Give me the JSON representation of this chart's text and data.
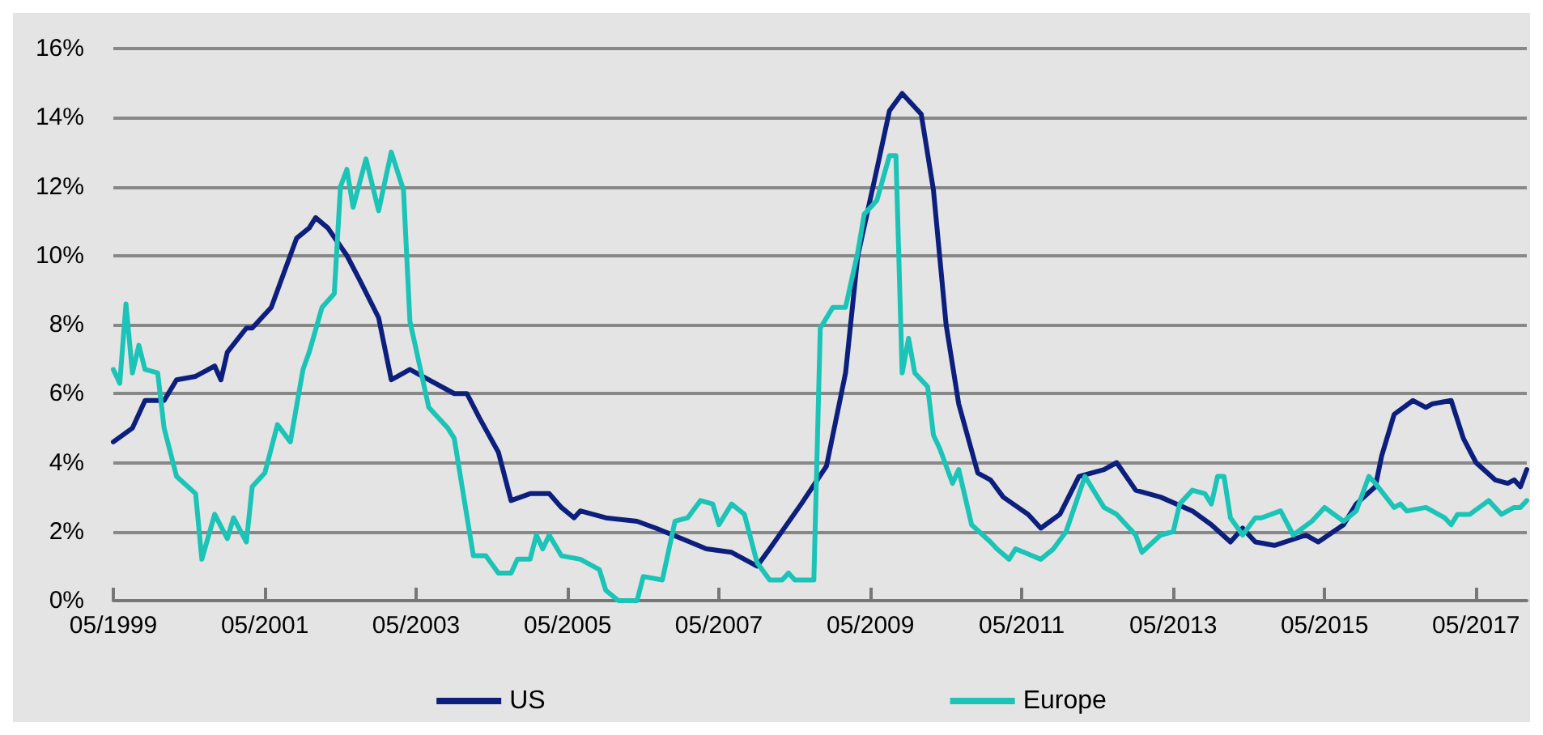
{
  "chart_data": {
    "type": "line",
    "xlim": [
      "1999-05",
      "2018-01"
    ],
    "xticks": [
      {
        "value": "1999-05",
        "label": "05/1999"
      },
      {
        "value": "2001-05",
        "label": "05/2001"
      },
      {
        "value": "2003-05",
        "label": "05/2003"
      },
      {
        "value": "2005-05",
        "label": "05/2005"
      },
      {
        "value": "2007-05",
        "label": "05/2007"
      },
      {
        "value": "2009-05",
        "label": "05/2009"
      },
      {
        "value": "2011-05",
        "label": "05/2011"
      },
      {
        "value": "2013-05",
        "label": "05/2013"
      },
      {
        "value": "2015-05",
        "label": "05/2015"
      },
      {
        "value": "2017-05",
        "label": "05/2017"
      }
    ],
    "ylim": [
      0,
      16
    ],
    "yticks": [
      {
        "value": 0,
        "label": "0%"
      },
      {
        "value": 2,
        "label": "2%"
      },
      {
        "value": 4,
        "label": "4%"
      },
      {
        "value": 6,
        "label": "6%"
      },
      {
        "value": 8,
        "label": "8%"
      },
      {
        "value": 10,
        "label": "10%"
      },
      {
        "value": 12,
        "label": "12%"
      },
      {
        "value": 14,
        "label": "14%"
      },
      {
        "value": 16,
        "label": "16%"
      }
    ],
    "grid": "y",
    "legend": "bottom",
    "marker": "none",
    "line_style": "solid",
    "series": [
      {
        "name": "US",
        "color": "#0d1f7c",
        "x": [
          "1999-05",
          "1999-08",
          "1999-10",
          "2000-01",
          "2000-03",
          "2000-06",
          "2000-09",
          "2000-10",
          "2000-11",
          "2001-02",
          "2001-03",
          "2001-06",
          "2001-08",
          "2001-10",
          "2001-12",
          "2002-01",
          "2002-03",
          "2002-06",
          "2002-08",
          "2002-11",
          "2003-01",
          "2003-02",
          "2003-04",
          "2003-07",
          "2003-11",
          "2004-01",
          "2004-03",
          "2004-06",
          "2004-08",
          "2004-11",
          "2005-02",
          "2005-04",
          "2005-06",
          "2005-07",
          "2005-11",
          "2006-04",
          "2006-07",
          "2006-11",
          "2007-03",
          "2007-07",
          "2007-11",
          "2008-01",
          "2008-06",
          "2008-10",
          "2009-01",
          "2009-03",
          "2009-06",
          "2009-08",
          "2009-10",
          "2010-01",
          "2010-03",
          "2010-05",
          "2010-07",
          "2010-10",
          "2010-12",
          "2011-02",
          "2011-06",
          "2011-08",
          "2011-11",
          "2012-02",
          "2012-06",
          "2012-08",
          "2012-11",
          "2013-03",
          "2013-08",
          "2013-11",
          "2014-02",
          "2014-04",
          "2014-06",
          "2014-09",
          "2015-02",
          "2015-04",
          "2015-08",
          "2015-10",
          "2016-01",
          "2016-02",
          "2016-04",
          "2016-07",
          "2016-09",
          "2016-10",
          "2017-01",
          "2017-03",
          "2017-05",
          "2017-08",
          "2017-10",
          "2017-11",
          "2017-12",
          "2018-01"
        ],
        "values": [
          4.6,
          5.0,
          5.8,
          5.8,
          6.4,
          6.5,
          6.8,
          6.4,
          7.2,
          7.9,
          7.9,
          8.5,
          9.5,
          10.5,
          10.8,
          11.1,
          10.8,
          10.0,
          9.3,
          8.2,
          6.4,
          6.5,
          6.7,
          6.4,
          6.0,
          6.0,
          5.3,
          4.3,
          2.9,
          3.1,
          3.1,
          2.7,
          2.4,
          2.6,
          2.4,
          2.3,
          2.1,
          1.8,
          1.5,
          1.4,
          1.0,
          1.5,
          2.8,
          3.9,
          6.6,
          10.0,
          12.5,
          14.2,
          14.7,
          14.1,
          11.9,
          8.0,
          5.7,
          3.7,
          3.5,
          3.0,
          2.5,
          2.1,
          2.5,
          3.6,
          3.8,
          4.0,
          3.2,
          3.0,
          2.6,
          2.2,
          1.7,
          2.1,
          1.7,
          1.6,
          1.9,
          1.7,
          2.2,
          2.8,
          3.3,
          4.2,
          5.4,
          5.8,
          5.6,
          5.7,
          5.8,
          4.7,
          4.0,
          3.5,
          3.4,
          3.5,
          3.3,
          3.8
        ]
      },
      {
        "name": "Europe",
        "color": "#1bc4b6",
        "x": [
          "1999-05",
          "1999-06",
          "1999-07",
          "1999-08",
          "1999-09",
          "1999-10",
          "1999-12",
          "2000-01",
          "2000-03",
          "2000-06",
          "2000-07",
          "2000-09",
          "2000-11",
          "2000-12",
          "2001-02",
          "2001-03",
          "2001-05",
          "2001-07",
          "2001-09",
          "2001-11",
          "2001-12",
          "2002-02",
          "2002-04",
          "2002-05",
          "2002-06",
          "2002-07",
          "2002-09",
          "2002-11",
          "2003-01",
          "2003-03",
          "2003-04",
          "2003-07",
          "2003-10",
          "2003-11",
          "2004-02",
          "2004-04",
          "2004-06",
          "2004-08",
          "2004-09",
          "2004-11",
          "2004-12",
          "2005-01",
          "2005-02",
          "2005-04",
          "2005-07",
          "2005-10",
          "2005-11",
          "2006-01",
          "2006-04",
          "2006-05",
          "2006-08",
          "2006-10",
          "2006-12",
          "2007-02",
          "2007-04",
          "2007-05",
          "2007-07",
          "2007-09",
          "2007-11",
          "2008-01",
          "2008-03",
          "2008-04",
          "2008-05",
          "2008-08",
          "2008-09",
          "2008-11",
          "2009-01",
          "2009-03",
          "2009-04",
          "2009-06",
          "2009-08",
          "2009-09",
          "2009-10",
          "2009-11",
          "2009-12",
          "2010-02",
          "2010-03",
          "2010-04",
          "2010-06",
          "2010-07",
          "2010-09",
          "2010-12",
          "2011-01",
          "2011-03",
          "2011-04",
          "2011-08",
          "2011-10",
          "2011-12",
          "2012-03",
          "2012-06",
          "2012-08",
          "2012-11",
          "2012-12",
          "2013-03",
          "2013-05",
          "2013-06",
          "2013-08",
          "2013-10",
          "2013-11",
          "2013-12",
          "2014-01",
          "2014-02",
          "2014-04",
          "2014-06",
          "2014-07",
          "2014-10",
          "2014-12",
          "2015-03",
          "2015-05",
          "2015-08",
          "2015-10",
          "2015-12",
          "2016-01",
          "2016-04",
          "2016-05",
          "2016-06",
          "2016-09",
          "2016-12",
          "2017-01",
          "2017-02",
          "2017-04",
          "2017-07",
          "2017-09",
          "2017-11",
          "2017-12",
          "2018-01"
        ],
        "values": [
          6.7,
          6.3,
          8.6,
          6.6,
          7.4,
          6.7,
          6.6,
          5.0,
          3.6,
          3.1,
          1.2,
          2.5,
          1.8,
          2.4,
          1.7,
          3.3,
          3.7,
          5.1,
          4.6,
          6.7,
          7.2,
          8.5,
          8.9,
          12.0,
          12.5,
          11.4,
          12.8,
          11.3,
          13.0,
          11.9,
          8.1,
          5.6,
          5.0,
          4.7,
          1.3,
          1.3,
          0.8,
          0.8,
          1.2,
          1.2,
          1.9,
          1.5,
          1.9,
          1.3,
          1.2,
          0.9,
          0.3,
          0.0,
          0.0,
          0.7,
          0.6,
          2.3,
          2.4,
          2.9,
          2.8,
          2.2,
          2.8,
          2.5,
          1.1,
          0.6,
          0.6,
          0.8,
          0.6,
          0.6,
          7.9,
          8.5,
          8.5,
          10.1,
          11.2,
          11.6,
          12.9,
          12.9,
          6.6,
          7.6,
          6.6,
          6.2,
          4.8,
          4.4,
          3.4,
          3.8,
          2.2,
          1.7,
          1.5,
          1.2,
          1.5,
          1.2,
          1.5,
          2.0,
          3.6,
          2.7,
          2.5,
          1.9,
          1.4,
          1.9,
          2.0,
          2.8,
          3.2,
          3.1,
          2.8,
          3.6,
          3.6,
          2.4,
          1.9,
          2.4,
          2.4,
          2.6,
          1.9,
          2.3,
          2.7,
          2.3,
          2.6,
          3.6,
          3.4,
          2.7,
          2.8,
          2.6,
          2.7,
          2.4,
          2.2,
          2.5,
          2.5,
          2.9,
          2.5,
          2.7,
          2.7,
          2.9
        ]
      }
    ]
  }
}
